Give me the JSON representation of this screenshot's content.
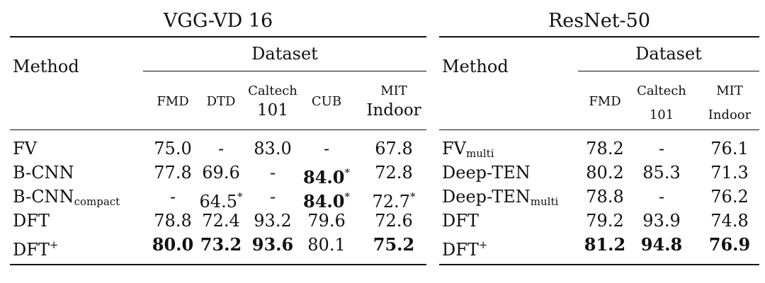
{
  "left_table": {
    "title": "VGG-VD 16",
    "method_header": "Method",
    "dataset_header": "Dataset",
    "columns": [
      {
        "lines": [
          "FMD"
        ]
      },
      {
        "lines": [
          "DTD"
        ]
      },
      {
        "lines": [
          "Caltech",
          "101"
        ]
      },
      {
        "lines": [
          "CUB"
        ]
      },
      {
        "lines": [
          "MIT",
          "Indoor"
        ]
      }
    ],
    "rows": [
      {
        "method": "FV",
        "method_sub": "",
        "method_sup": "",
        "cells": [
          {
            "v": "75.0"
          },
          {
            "v": "-"
          },
          {
            "v": "83.0"
          },
          {
            "v": "-"
          },
          {
            "v": "67.8"
          }
        ]
      },
      {
        "method": "B-CNN",
        "method_sub": "",
        "method_sup": "",
        "cells": [
          {
            "v": "77.8"
          },
          {
            "v": "69.6"
          },
          {
            "v": "-"
          },
          {
            "v": "84.0",
            "bold": true,
            "star": "*"
          },
          {
            "v": "72.8"
          }
        ]
      },
      {
        "method": "B-CNN",
        "method_sub": "compact",
        "method_sup": "",
        "cells": [
          {
            "v": "-"
          },
          {
            "v": "64.5",
            "star": "*"
          },
          {
            "v": "-"
          },
          {
            "v": "84.0",
            "bold": true,
            "star": "*"
          },
          {
            "v": "72.7",
            "star": "*"
          }
        ]
      },
      {
        "method": "DFT",
        "method_sub": "",
        "method_sup": "",
        "cells": [
          {
            "v": "78.8"
          },
          {
            "v": "72.4"
          },
          {
            "v": "93.2"
          },
          {
            "v": "79.6"
          },
          {
            "v": "72.6"
          }
        ]
      },
      {
        "method": "DFT",
        "method_sub": "",
        "method_sup": "+",
        "cells": [
          {
            "v": "80.0",
            "bold": true
          },
          {
            "v": "73.2",
            "bold": true
          },
          {
            "v": "93.6",
            "bold": true
          },
          {
            "v": "80.1"
          },
          {
            "v": "75.2",
            "bold": true
          }
        ]
      }
    ]
  },
  "right_table": {
    "title": "ResNet-50",
    "method_header": "Method",
    "dataset_header": "Dataset",
    "columns": [
      {
        "lines": [
          "FMD"
        ]
      },
      {
        "lines": [
          "Caltech",
          "101"
        ]
      },
      {
        "lines": [
          "MIT",
          "Indoor"
        ]
      }
    ],
    "rows": [
      {
        "method": "FV",
        "method_sub": "multi",
        "method_sup": "",
        "cells": [
          {
            "v": "78.2"
          },
          {
            "v": "-"
          },
          {
            "v": "76.1"
          }
        ]
      },
      {
        "method": "Deep-TEN",
        "method_sub": "",
        "method_sup": "",
        "cells": [
          {
            "v": "80.2"
          },
          {
            "v": "85.3"
          },
          {
            "v": "71.3"
          }
        ]
      },
      {
        "method": "Deep-TEN",
        "method_sub": "multi",
        "method_sup": "",
        "cells": [
          {
            "v": "78.8"
          },
          {
            "v": "-"
          },
          {
            "v": "76.2"
          }
        ]
      },
      {
        "method": "DFT",
        "method_sub": "",
        "method_sup": "",
        "cells": [
          {
            "v": "79.2"
          },
          {
            "v": "93.9"
          },
          {
            "v": "74.8"
          }
        ]
      },
      {
        "method": "DFT",
        "method_sub": "",
        "method_sup": "+",
        "cells": [
          {
            "v": "81.2",
            "bold": true
          },
          {
            "v": "94.8",
            "bold": true
          },
          {
            "v": "76.9",
            "bold": true
          }
        ]
      }
    ]
  }
}
